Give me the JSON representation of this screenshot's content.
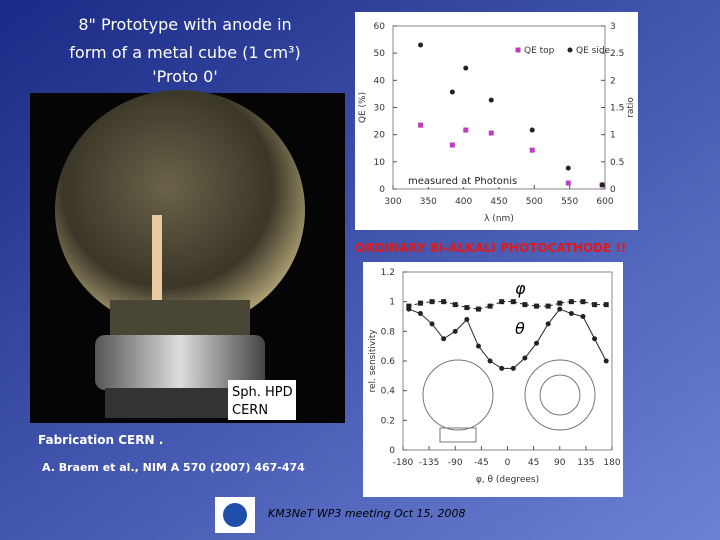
{
  "title_lines": [
    "8\" Prototype with anode in",
    "form of a metal cube (1 cm³)",
    "'Proto 0'"
  ],
  "photo_label": [
    "Sph. HPD",
    "CERN"
  ],
  "fabrication": "Fabrication CERN .",
  "reference": "A. Braem et al., NIM A 570 (2007) 467-474",
  "banner": "ORDINARY BI-ALKALI PHOTOCATHODE !!",
  "footer": "KM3NeT WP3 meeting Oct 15, 2008",
  "chart_data": [
    {
      "type": "scatter",
      "x_label": "λ (nm)",
      "y_label": "QE (%)",
      "y2_label": "ratio",
      "annotation": "measured at Photonis",
      "xlim": [
        300,
        600
      ],
      "xticks": [
        300,
        350,
        400,
        450,
        500,
        550,
        600
      ],
      "ylim": [
        0,
        60
      ],
      "yticks": [
        0,
        10,
        20,
        30,
        40,
        50,
        60
      ],
      "y2lim": [
        0,
        3
      ],
      "y2ticks": [
        0,
        0.5,
        1,
        1.5,
        2,
        2.5,
        3
      ],
      "series": [
        {
          "name": "QE top",
          "color": "#c03cc0",
          "marker": "square",
          "x": [
            339,
            384,
            403,
            439,
            497,
            548,
            596
          ],
          "values": [
            23.5,
            16.2,
            21.7,
            20.6,
            14.3,
            2.2,
            1.5
          ]
        },
        {
          "name": "QE side",
          "color": "#222222",
          "marker": "circle",
          "x": [
            339,
            384,
            403,
            439,
            497,
            548,
            596
          ],
          "values": [
            53,
            35.7,
            44.5,
            32.7,
            21.7,
            7.7,
            1.5
          ]
        }
      ]
    },
    {
      "type": "line",
      "x_label": "φ, θ (degrees)",
      "y_label": "rel. sensitivity",
      "xlim": [
        -180,
        180
      ],
      "xticks": [
        -180,
        -135,
        -90,
        -45,
        0,
        45,
        90,
        135,
        180
      ],
      "ylim": [
        0,
        1.2
      ],
      "yticks": [
        0,
        0.2,
        0.4,
        0.6,
        0.8,
        1,
        1.2
      ],
      "series": [
        {
          "name": "φ",
          "color": "#222222",
          "marker": "square",
          "x": [
            -170,
            -150,
            -130,
            -110,
            -90,
            -70,
            -50,
            -30,
            -10,
            10,
            30,
            50,
            70,
            90,
            110,
            130,
            150,
            170
          ],
          "values": [
            0.97,
            0.99,
            1.0,
            1.0,
            0.98,
            0.96,
            0.95,
            0.97,
            1.0,
            1.0,
            0.98,
            0.97,
            0.97,
            0.99,
            1.0,
            1.0,
            0.98,
            0.98
          ]
        },
        {
          "name": "θ",
          "color": "#222222",
          "marker": "circle",
          "x": [
            -170,
            -150,
            -130,
            -110,
            -90,
            -70,
            -50,
            -30,
            -10,
            10,
            30,
            50,
            70,
            90,
            110,
            130,
            150,
            170
          ],
          "values": [
            0.95,
            0.92,
            0.85,
            0.75,
            0.8,
            0.88,
            0.7,
            0.6,
            0.55,
            0.55,
            0.62,
            0.72,
            0.85,
            0.95,
            0.92,
            0.9,
            0.75,
            0.6
          ]
        }
      ]
    }
  ]
}
